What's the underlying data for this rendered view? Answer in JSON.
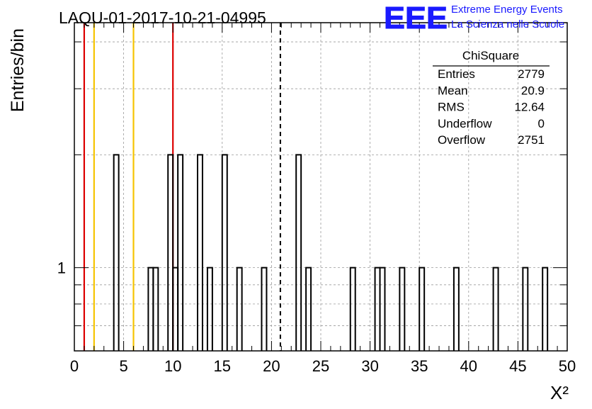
{
  "run_title": "LAQU-01-2017-10-21-04995",
  "logo": {
    "letters": "EEE",
    "line1": "Extreme Energy Events",
    "line2": "La Scienza nelle Scuole",
    "color": "#1a1aff"
  },
  "stats_box": {
    "title": "ChiSquare",
    "rows": [
      {
        "label": "Entries",
        "value": "2779"
      },
      {
        "label": "Mean",
        "value": "20.9"
      },
      {
        "label": "RMS",
        "value": "12.64"
      },
      {
        "label": "Underflow",
        "value": "0"
      },
      {
        "label": "Overflow",
        "value": "2751"
      }
    ]
  },
  "chart_data": {
    "type": "histogram",
    "xlabel": "X²",
    "ylabel": "Entries/bin",
    "xlim": [
      0,
      50
    ],
    "y_scale": "log",
    "ylim": [
      0.6,
      4.5
    ],
    "x_ticks": [
      "0",
      "5",
      "10",
      "15",
      "20",
      "25",
      "30",
      "35",
      "40",
      "45",
      "50"
    ],
    "y_tick_labels": [
      {
        "value": 1,
        "label": "1"
      }
    ],
    "grid": true,
    "bin_width": 0.5,
    "bins": [
      {
        "x": 4.0,
        "count": 2
      },
      {
        "x": 7.5,
        "count": 1
      },
      {
        "x": 8.0,
        "count": 1
      },
      {
        "x": 9.5,
        "count": 2
      },
      {
        "x": 10.0,
        "count": 1
      },
      {
        "x": 10.5,
        "count": 2
      },
      {
        "x": 12.5,
        "count": 2
      },
      {
        "x": 13.5,
        "count": 1
      },
      {
        "x": 15.0,
        "count": 2
      },
      {
        "x": 16.5,
        "count": 1
      },
      {
        "x": 19.0,
        "count": 1
      },
      {
        "x": 22.5,
        "count": 2
      },
      {
        "x": 23.5,
        "count": 1
      },
      {
        "x": 28.0,
        "count": 1
      },
      {
        "x": 30.5,
        "count": 1
      },
      {
        "x": 31.0,
        "count": 1
      },
      {
        "x": 33.0,
        "count": 1
      },
      {
        "x": 35.0,
        "count": 1
      },
      {
        "x": 38.5,
        "count": 1
      },
      {
        "x": 42.5,
        "count": 1
      },
      {
        "x": 45.5,
        "count": 1
      },
      {
        "x": 47.5,
        "count": 1
      }
    ],
    "reference_lines": [
      {
        "x": 1,
        "color": "#dd0000",
        "style": "solid"
      },
      {
        "x": 2,
        "color": "#f5c400",
        "style": "solid"
      },
      {
        "x": 6,
        "color": "#f5c400",
        "style": "solid"
      },
      {
        "x": 10,
        "color": "#dd0000",
        "style": "solid"
      },
      {
        "x": 20.9,
        "color": "#000000",
        "style": "dashed"
      }
    ]
  }
}
